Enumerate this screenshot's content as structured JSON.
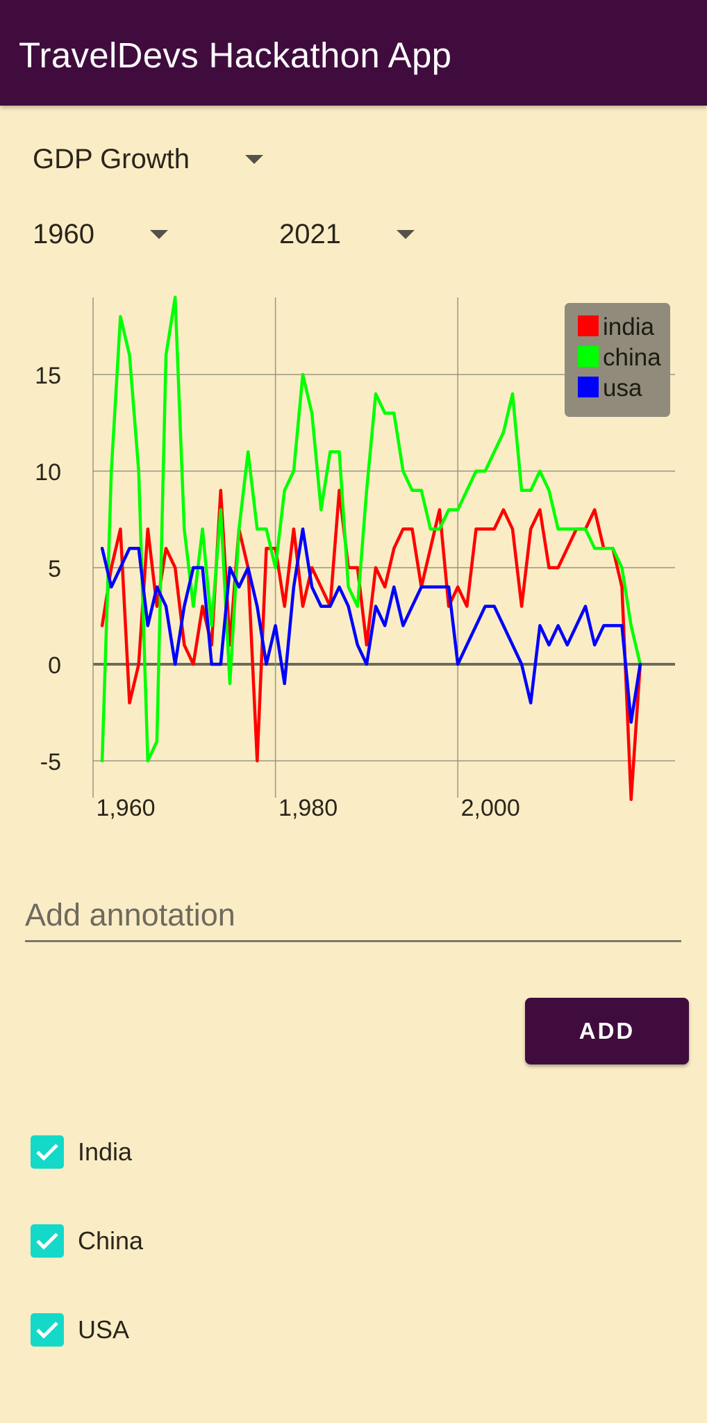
{
  "app_bar": {
    "title": "TravelDevs Hackathon App"
  },
  "controls": {
    "metric": {
      "selected": "GDP Growth",
      "icon": "caret-down-icon"
    },
    "start_year": {
      "selected": "1960",
      "icon": "caret-down-icon"
    },
    "end_year": {
      "selected": "2021",
      "icon": "caret-down-icon"
    }
  },
  "annotation": {
    "value": "",
    "placeholder": "Add annotation"
  },
  "add_button": {
    "label": "ADD"
  },
  "countries": [
    {
      "label": "India",
      "checked": true
    },
    {
      "label": "China",
      "checked": true
    },
    {
      "label": "USA",
      "checked": true
    }
  ],
  "colors": {
    "app_bar": "#400C3E",
    "background": "#FAEDC5",
    "checkbox": "#14D9C9",
    "india": "#FF0000",
    "china": "#00FF00",
    "usa": "#0000FF"
  },
  "chart_data": {
    "type": "line",
    "xlim": [
      1960,
      2021
    ],
    "ylim": [
      -7,
      19
    ],
    "x_ticks": [
      1960,
      1980,
      2000
    ],
    "x_tick_labels": [
      "1,960",
      "1,980",
      "2,000"
    ],
    "y_ticks": [
      -5,
      0,
      5,
      10,
      15
    ],
    "y_tick_labels": [
      "-5",
      "0",
      "5",
      "10",
      "15"
    ],
    "grid": true,
    "legend_position": "top-right",
    "series": [
      {
        "name": "india",
        "color": "#FF0000",
        "points": [
          [
            1961,
            2
          ],
          [
            1962,
            5
          ],
          [
            1963,
            7
          ],
          [
            1964,
            -2
          ],
          [
            1965,
            0
          ],
          [
            1966,
            7
          ],
          [
            1967,
            3
          ],
          [
            1968,
            6
          ],
          [
            1969,
            5
          ],
          [
            1970,
            1
          ],
          [
            1971,
            0
          ],
          [
            1972,
            3
          ],
          [
            1973,
            1
          ],
          [
            1974,
            9
          ],
          [
            1975,
            1
          ],
          [
            1976,
            7
          ],
          [
            1977,
            5
          ],
          [
            1978,
            -5
          ],
          [
            1979,
            6
          ],
          [
            1980,
            6
          ],
          [
            1981,
            3
          ],
          [
            1982,
            7
          ],
          [
            1983,
            3
          ],
          [
            1984,
            5
          ],
          [
            1985,
            4
          ],
          [
            1986,
            3
          ],
          [
            1987,
            9
          ],
          [
            1988,
            5
          ],
          [
            1989,
            5
          ],
          [
            1990,
            1
          ],
          [
            1991,
            5
          ],
          [
            1992,
            4
          ],
          [
            1993,
            6
          ],
          [
            1994,
            7
          ],
          [
            1995,
            7
          ],
          [
            1996,
            4
          ],
          [
            1997,
            6
          ],
          [
            1998,
            8
          ],
          [
            1999,
            3
          ],
          [
            2000,
            4
          ],
          [
            2001,
            3
          ],
          [
            2002,
            7
          ],
          [
            2003,
            7
          ],
          [
            2004,
            7
          ],
          [
            2005,
            8
          ],
          [
            2006,
            7
          ],
          [
            2007,
            3
          ],
          [
            2008,
            7
          ],
          [
            2009,
            8
          ],
          [
            2010,
            5
          ],
          [
            2011,
            5
          ],
          [
            2012,
            6
          ],
          [
            2013,
            7
          ],
          [
            2014,
            7
          ],
          [
            2015,
            8
          ],
          [
            2016,
            6
          ],
          [
            2017,
            6
          ],
          [
            2018,
            4
          ],
          [
            2019,
            -7
          ],
          [
            2020,
            0
          ]
        ]
      },
      {
        "name": "china",
        "color": "#00FF00",
        "points": [
          [
            1961,
            -5
          ],
          [
            1962,
            10
          ],
          [
            1963,
            18
          ],
          [
            1964,
            16
          ],
          [
            1965,
            10
          ],
          [
            1966,
            -5
          ],
          [
            1967,
            -4
          ],
          [
            1968,
            16
          ],
          [
            1969,
            19
          ],
          [
            1970,
            7
          ],
          [
            1971,
            3
          ],
          [
            1972,
            7
          ],
          [
            1973,
            2
          ],
          [
            1974,
            8
          ],
          [
            1975,
            -1
          ],
          [
            1976,
            7
          ],
          [
            1977,
            11
          ],
          [
            1978,
            7
          ],
          [
            1979,
            7
          ],
          [
            1980,
            5
          ],
          [
            1981,
            9
          ],
          [
            1982,
            10
          ],
          [
            1983,
            15
          ],
          [
            1984,
            13
          ],
          [
            1985,
            8
          ],
          [
            1986,
            11
          ],
          [
            1987,
            11
          ],
          [
            1988,
            4
          ],
          [
            1989,
            3
          ],
          [
            1990,
            9
          ],
          [
            1991,
            14
          ],
          [
            1992,
            13
          ],
          [
            1993,
            13
          ],
          [
            1994,
            10
          ],
          [
            1995,
            9
          ],
          [
            1996,
            9
          ],
          [
            1997,
            7
          ],
          [
            1998,
            7
          ],
          [
            1999,
            8
          ],
          [
            2000,
            8
          ],
          [
            2001,
            9
          ],
          [
            2002,
            10
          ],
          [
            2003,
            10
          ],
          [
            2004,
            11
          ],
          [
            2005,
            12
          ],
          [
            2006,
            14
          ],
          [
            2007,
            9
          ],
          [
            2008,
            9
          ],
          [
            2009,
            10
          ],
          [
            2010,
            9
          ],
          [
            2011,
            7
          ],
          [
            2012,
            7
          ],
          [
            2013,
            7
          ],
          [
            2014,
            7
          ],
          [
            2015,
            6
          ],
          [
            2016,
            6
          ],
          [
            2017,
            6
          ],
          [
            2018,
            5
          ],
          [
            2019,
            2
          ],
          [
            2020,
            0
          ]
        ]
      },
      {
        "name": "usa",
        "color": "#0000FF",
        "points": [
          [
            1961,
            6
          ],
          [
            1962,
            4
          ],
          [
            1963,
            5
          ],
          [
            1964,
            6
          ],
          [
            1965,
            6
          ],
          [
            1966,
            2
          ],
          [
            1967,
            4
          ],
          [
            1968,
            3
          ],
          [
            1969,
            0
          ],
          [
            1970,
            3
          ],
          [
            1971,
            5
          ],
          [
            1972,
            5
          ],
          [
            1973,
            0
          ],
          [
            1974,
            0
          ],
          [
            1975,
            5
          ],
          [
            1976,
            4
          ],
          [
            1977,
            5
          ],
          [
            1978,
            3
          ],
          [
            1979,
            0
          ],
          [
            1980,
            2
          ],
          [
            1981,
            -1
          ],
          [
            1982,
            4
          ],
          [
            1983,
            7
          ],
          [
            1984,
            4
          ],
          [
            1985,
            3
          ],
          [
            1986,
            3
          ],
          [
            1987,
            4
          ],
          [
            1988,
            3
          ],
          [
            1989,
            1
          ],
          [
            1990,
            0
          ],
          [
            1991,
            3
          ],
          [
            1992,
            2
          ],
          [
            1993,
            4
          ],
          [
            1994,
            2
          ],
          [
            1995,
            3
          ],
          [
            1996,
            4
          ],
          [
            1997,
            4
          ],
          [
            1998,
            4
          ],
          [
            1999,
            4
          ],
          [
            2000,
            0
          ],
          [
            2001,
            1
          ],
          [
            2002,
            2
          ],
          [
            2003,
            3
          ],
          [
            2004,
            3
          ],
          [
            2005,
            2
          ],
          [
            2006,
            1
          ],
          [
            2007,
            0
          ],
          [
            2008,
            -2
          ],
          [
            2009,
            2
          ],
          [
            2010,
            1
          ],
          [
            2011,
            2
          ],
          [
            2012,
            1
          ],
          [
            2013,
            2
          ],
          [
            2014,
            3
          ],
          [
            2015,
            1
          ],
          [
            2016,
            2
          ],
          [
            2017,
            2
          ],
          [
            2018,
            2
          ],
          [
            2019,
            -3
          ],
          [
            2020,
            0
          ]
        ]
      }
    ]
  }
}
